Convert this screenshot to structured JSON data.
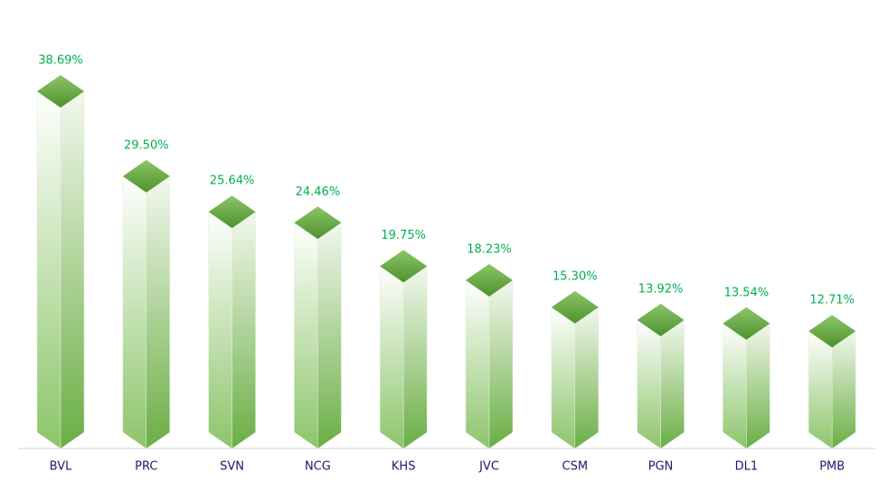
{
  "chart_data": {
    "type": "bar3d",
    "categories": [
      "BVL",
      "PRC",
      "SVN",
      "NCG",
      "KHS",
      "JVC",
      "CSM",
      "PGN",
      "DL1",
      "PMB"
    ],
    "values": [
      38.69,
      29.5,
      25.64,
      24.46,
      19.75,
      18.23,
      15.3,
      13.92,
      13.54,
      12.71
    ],
    "value_labels": [
      "38.69%",
      "29.50%",
      "25.64%",
      "24.46%",
      "19.75%",
      "18.23%",
      "15.30%",
      "13.92%",
      "13.54%",
      "12.71%"
    ],
    "color": "#6fb043"
  }
}
